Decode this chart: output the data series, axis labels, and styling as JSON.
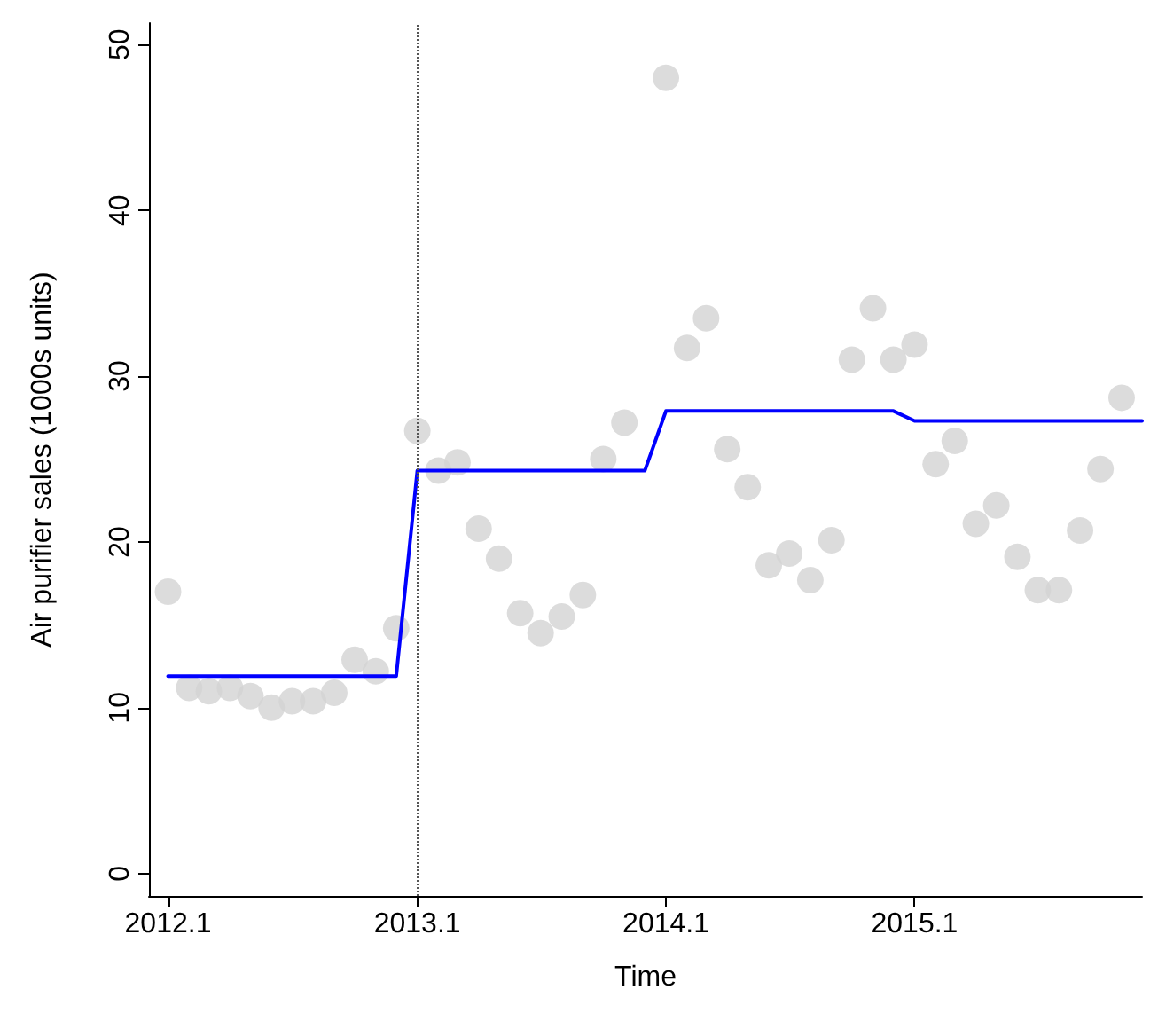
{
  "chart_data": {
    "type": "scatter",
    "xlabel": "Time",
    "ylabel": "Air purifier sales (1000s units)",
    "xlim": [
      "2011-12-04",
      "2015-12-01"
    ],
    "ylim": [
      -1.35,
      51.3
    ],
    "xticks": [
      {
        "value": "2012-01",
        "label": "2012.1"
      },
      {
        "value": "2013-01",
        "label": "2013.1"
      },
      {
        "value": "2014-01",
        "label": "2014.1"
      },
      {
        "value": "2015-01",
        "label": "2015.1"
      }
    ],
    "yticks": [
      0,
      10,
      20,
      30,
      40,
      50
    ],
    "series": [
      {
        "color": "#d3d3d3",
        "marker": "circle",
        "x": [
          "2012-01",
          "2012-02",
          "2012-03",
          "2012-04",
          "2012-05",
          "2012-06",
          "2012-07",
          "2012-08",
          "2012-09",
          "2012-10",
          "2012-11",
          "2012-12",
          "2013-01",
          "2013-02",
          "2013-03",
          "2013-04",
          "2013-05",
          "2013-06",
          "2013-07",
          "2013-08",
          "2013-09",
          "2013-10",
          "2013-11",
          "2013-12",
          "2014-01",
          "2014-02",
          "2014-03",
          "2014-04",
          "2014-05",
          "2014-06",
          "2014-07",
          "2014-08",
          "2014-09",
          "2014-10",
          "2014-11",
          "2014-12",
          "2015-01",
          "2015-02",
          "2015-03",
          "2015-04",
          "2015-05",
          "2015-06",
          "2015-07",
          "2015-08",
          "2015-09",
          "2015-10",
          "2015-11"
        ],
        "values": [
          17.0,
          11.2,
          11.0,
          11.2,
          10.7,
          10.0,
          10.4,
          10.4,
          10.9,
          12.9,
          12.2,
          14.8,
          26.7,
          24.3,
          24.8,
          20.8,
          19.0,
          15.7,
          14.5,
          15.5,
          16.8,
          25.0,
          27.2,
          null,
          48.0,
          31.7,
          33.5,
          25.6,
          23.3,
          18.6,
          19.3,
          17.7,
          20.1,
          31.0,
          34.1,
          31.0,
          31.9,
          24.7,
          26.1,
          21.1,
          22.2,
          19.1,
          17.1,
          17.1,
          20.7,
          24.4,
          28.7
        ]
      },
      {
        "type": "line",
        "color": "#0000ff",
        "marker": "none",
        "line_style": "solid",
        "x": [
          "2012-01",
          "2012-12",
          "2013-01",
          "2013-12",
          "2014-01",
          "2014-12",
          "2015-01",
          "2015-12"
        ],
        "values": [
          11.9,
          11.9,
          24.3,
          24.3,
          27.9,
          27.9,
          27.3,
          27.3
        ]
      }
    ],
    "ref_lines": [
      {
        "axis": "x",
        "value": "2013-01",
        "color": "#555555",
        "line_style": "dotted"
      }
    ]
  }
}
